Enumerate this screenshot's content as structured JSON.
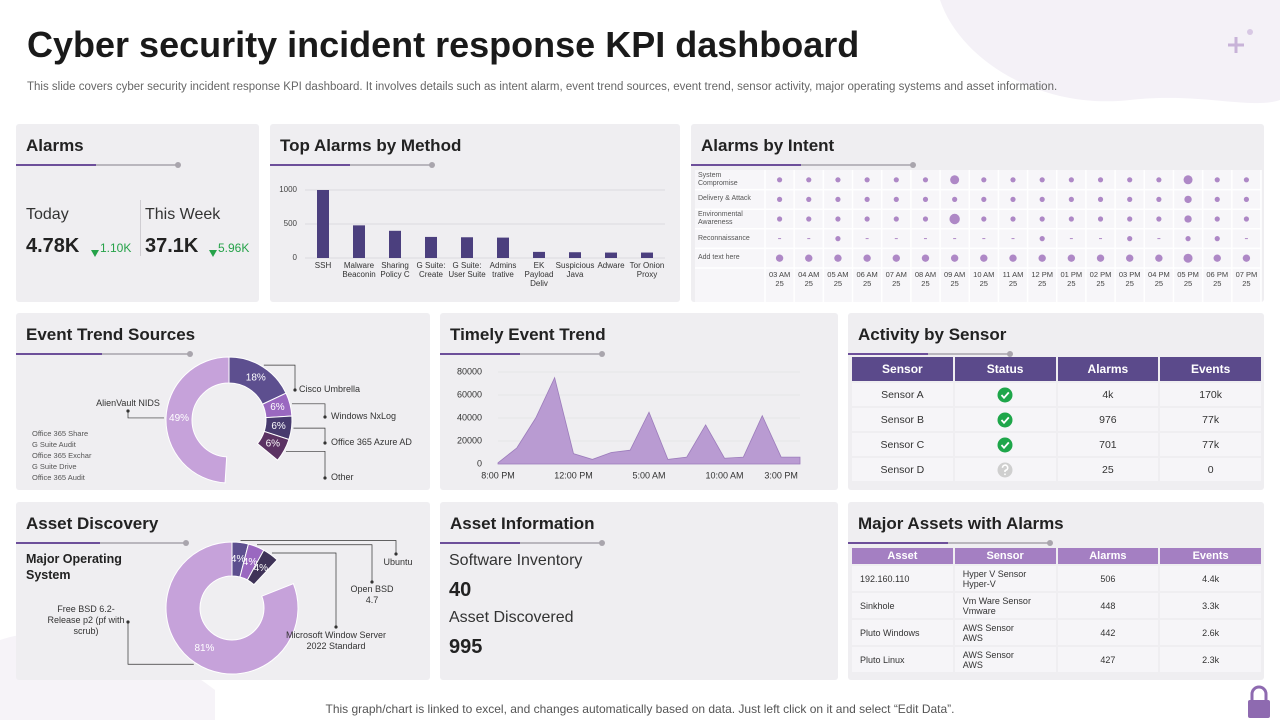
{
  "header": {
    "title": "Cyber security incident response KPI dashboard",
    "subtitle": "This slide covers cyber security incident response KPI dashboard. It involves details such as intent alarm, event trend sources, event trend, sensor activity, major operating systems and asset information."
  },
  "footer": "This graph/chart is linked to excel, and changes automatically based on data. Just left click on it and select “Edit Data”.",
  "alarms": {
    "title": "Alarms",
    "today": {
      "label": "Today",
      "value": "4.78K",
      "change": "1.10K"
    },
    "week": {
      "label": "This Week",
      "value": "37.1K",
      "change": "5.96K"
    }
  },
  "asset_information": {
    "title": "Asset Information",
    "items": [
      {
        "label": "Software Inventory",
        "value": 40
      },
      {
        "label": "Asset Discovered",
        "value": 995
      }
    ]
  },
  "activity_by_sensor": {
    "title": "Activity by Sensor",
    "columns": [
      "Sensor",
      "Status",
      "Alarms",
      "Events"
    ],
    "rows": [
      {
        "sensor": "Sensor A",
        "status": "ok",
        "alarms": "4k",
        "events": "170k"
      },
      {
        "sensor": "Sensor B",
        "status": "ok",
        "alarms": 976,
        "events": "77k"
      },
      {
        "sensor": "Sensor C",
        "status": "ok",
        "alarms": 701,
        "events": "77k"
      },
      {
        "sensor": "Sensor D",
        "status": "unknown",
        "alarms": 25,
        "events": 0
      }
    ]
  },
  "major_assets": {
    "title": "Major Assets  with Alarms",
    "columns": [
      "Asset",
      "Sensor",
      "Alarms",
      "Events"
    ],
    "rows": [
      {
        "asset": "192.160.110",
        "sensor": [
          "Hyper V Sensor",
          "Hyper-V"
        ],
        "alarms": 506,
        "events": "4.4k"
      },
      {
        "asset": "Sinkhole",
        "sensor": [
          "Vm Ware Sensor",
          "Vmware"
        ],
        "alarms": 448,
        "events": "3.3k"
      },
      {
        "asset": "Pluto Windows",
        "sensor": [
          "AWS Sensor",
          "AWS"
        ],
        "alarms": 442,
        "events": "2.6k"
      },
      {
        "asset": "Pluto Linux",
        "sensor": [
          "AWS Sensor",
          "AWS"
        ],
        "alarms": 427,
        "events": "2.3k"
      }
    ]
  },
  "chart_data": [
    {
      "type": "bar",
      "title": "Top Alarms by Method",
      "categories": [
        "SSH",
        "Malware Beaconin",
        "Sharing Policy C",
        "G Suite: Create",
        "G Suite: User Suite",
        "Admins trative",
        "EK Payload Deliv",
        "Suspicious Java",
        "Adware",
        "Tor Onion Proxy"
      ],
      "values": [
        1000,
        480,
        400,
        310,
        305,
        300,
        90,
        85,
        80,
        80
      ],
      "color": "#4b3f7e",
      "ylim": [
        0,
        1000
      ],
      "yticks": [
        0,
        500,
        1000
      ],
      "grid": true
    },
    {
      "type": "dot-matrix",
      "title": "Alarms by Intent",
      "rows": [
        "System Compromise",
        "Delivery & Attack",
        "Environmental Awareness",
        "Reconnaissance",
        "Add text here"
      ],
      "columns": [
        "03 AM 25",
        "04 AM 25",
        "05 AM 25",
        "06 AM 25",
        "07 AM 25",
        "08 AM 25",
        "09 AM 25",
        "10 AM 25",
        "11 AM 25",
        "12 PM 25",
        "01 PM 25",
        "02 PM 25",
        "03 PM 25",
        "04 PM 25",
        "05 PM 25",
        "06 PM 25",
        "07 PM 25"
      ],
      "values": [
        [
          1,
          1,
          1,
          1,
          1,
          1,
          3,
          1,
          1,
          1,
          1,
          1,
          1,
          1,
          3,
          1,
          1
        ],
        [
          1,
          1,
          1,
          1,
          1,
          1,
          1,
          1,
          1,
          1,
          1,
          1,
          1,
          1,
          2,
          1,
          1
        ],
        [
          1,
          1,
          1,
          1,
          1,
          1,
          4,
          1,
          1,
          1,
          1,
          1,
          1,
          1,
          2,
          1,
          1
        ],
        [
          0,
          0,
          1,
          0,
          0,
          0,
          0,
          0,
          0,
          1,
          0,
          0,
          1,
          0,
          1,
          1,
          0
        ],
        [
          2,
          2,
          2,
          2,
          2,
          2,
          2,
          2,
          2,
          2,
          2,
          2,
          2,
          2,
          3,
          2,
          2
        ]
      ],
      "color": "#ae88c6"
    },
    {
      "type": "doughnut",
      "title": "Event Trend Sources",
      "categories": [
        "Cisco Umbrella",
        "Windows NxLog",
        "Office 365 Azure AD",
        "Other",
        "AlienVault NIDS"
      ],
      "values": [
        18,
        6,
        6,
        6,
        49
      ],
      "value_labels": [
        "18%",
        "6%",
        "6%",
        "6%",
        "49%"
      ],
      "colors": [
        "#5d4f8f",
        "#9a68c0",
        "#473a6e",
        "#5b3263",
        "#c6a2da"
      ],
      "extra_labels": [
        "Office 365 Share",
        "G Suite Audit",
        "Office 365 Exchar",
        "G Suite Drive",
        "Office 365 Audit"
      ]
    },
    {
      "type": "area",
      "title": "Timely Event Trend",
      "categories": [
        "8:00 PM",
        null,
        null,
        null,
        "12:00 PM",
        null,
        null,
        null,
        "5:00 AM",
        null,
        null,
        null,
        "10:00 AM",
        null,
        null,
        "3:00 PM",
        null
      ],
      "values": [
        1000,
        14000,
        40000,
        75000,
        9000,
        4000,
        10000,
        12000,
        45000,
        4000,
        6000,
        34000,
        5000,
        6000,
        42000,
        6000,
        6000
      ],
      "color": "#b99bd2",
      "ylim": [
        0,
        80000
      ],
      "yticks": [
        0,
        20000,
        40000,
        60000,
        80000
      ],
      "grid": true
    },
    {
      "type": "doughnut",
      "title": "Asset Discovery",
      "subtitle": "Major Operating System",
      "categories": [
        "Ubuntu",
        "Open BSD 4.7",
        "Microsoft Window Server 2022 Standard",
        "Free BSD 6.2-Release p2 (pf with scrub)"
      ],
      "values": [
        4,
        4,
        4,
        81
      ],
      "value_labels": [
        "4%",
        "4%",
        "4%",
        "81%"
      ],
      "colors": [
        "#5d4f8f",
        "#9a68c0",
        "#3f3358",
        "#c6a2da"
      ]
    }
  ]
}
